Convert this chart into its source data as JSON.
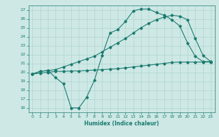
{
  "line1_x": [
    0,
    1,
    2,
    3,
    4,
    5,
    6,
    7,
    8,
    9,
    10,
    11,
    12,
    13,
    14,
    15,
    16,
    17,
    18,
    19,
    20,
    21,
    22,
    23
  ],
  "line1_y": [
    19.8,
    20.1,
    20.2,
    19.4,
    18.7,
    16.0,
    16.0,
    17.2,
    19.1,
    21.9,
    24.4,
    24.8,
    25.7,
    26.9,
    27.1,
    27.1,
    26.7,
    26.4,
    25.9,
    25.2,
    23.3,
    21.8,
    21.2,
    21.2
  ],
  "line2_x": [
    0,
    1,
    2,
    3,
    4,
    5,
    6,
    7,
    8,
    9,
    10,
    11,
    12,
    13,
    14,
    15,
    16,
    17,
    18,
    19,
    20,
    21,
    22,
    23
  ],
  "line2_y": [
    19.8,
    20.1,
    20.2,
    20.3,
    20.6,
    20.9,
    21.2,
    21.5,
    21.8,
    22.3,
    22.8,
    23.3,
    23.8,
    24.4,
    25.0,
    25.5,
    25.9,
    26.2,
    26.4,
    26.3,
    25.9,
    23.8,
    21.9,
    21.2
  ],
  "line3_x": [
    0,
    1,
    2,
    3,
    4,
    5,
    6,
    7,
    8,
    9,
    10,
    11,
    12,
    13,
    14,
    15,
    16,
    17,
    18,
    19,
    20,
    21,
    22,
    23
  ],
  "line3_y": [
    19.8,
    19.9,
    20.0,
    20.1,
    20.1,
    20.15,
    20.15,
    20.2,
    20.25,
    20.3,
    20.35,
    20.4,
    20.5,
    20.6,
    20.7,
    20.8,
    20.9,
    21.0,
    21.1,
    21.15,
    21.15,
    21.15,
    21.15,
    21.15
  ],
  "line_color": "#1a7a6e",
  "bg_color": "#cde8e5",
  "grid_color": "#b0d5d0",
  "xlabel": "Humidex (Indice chaleur)",
  "ylim": [
    15.5,
    27.5
  ],
  "xlim": [
    -0.5,
    23.5
  ],
  "yticks": [
    16,
    17,
    18,
    19,
    20,
    21,
    22,
    23,
    24,
    25,
    26,
    27
  ],
  "xticks": [
    0,
    1,
    2,
    3,
    4,
    5,
    6,
    7,
    8,
    9,
    10,
    11,
    12,
    13,
    14,
    15,
    16,
    17,
    18,
    19,
    20,
    21,
    22,
    23
  ],
  "marker": "D",
  "markersize": 1.8,
  "linewidth": 0.8
}
